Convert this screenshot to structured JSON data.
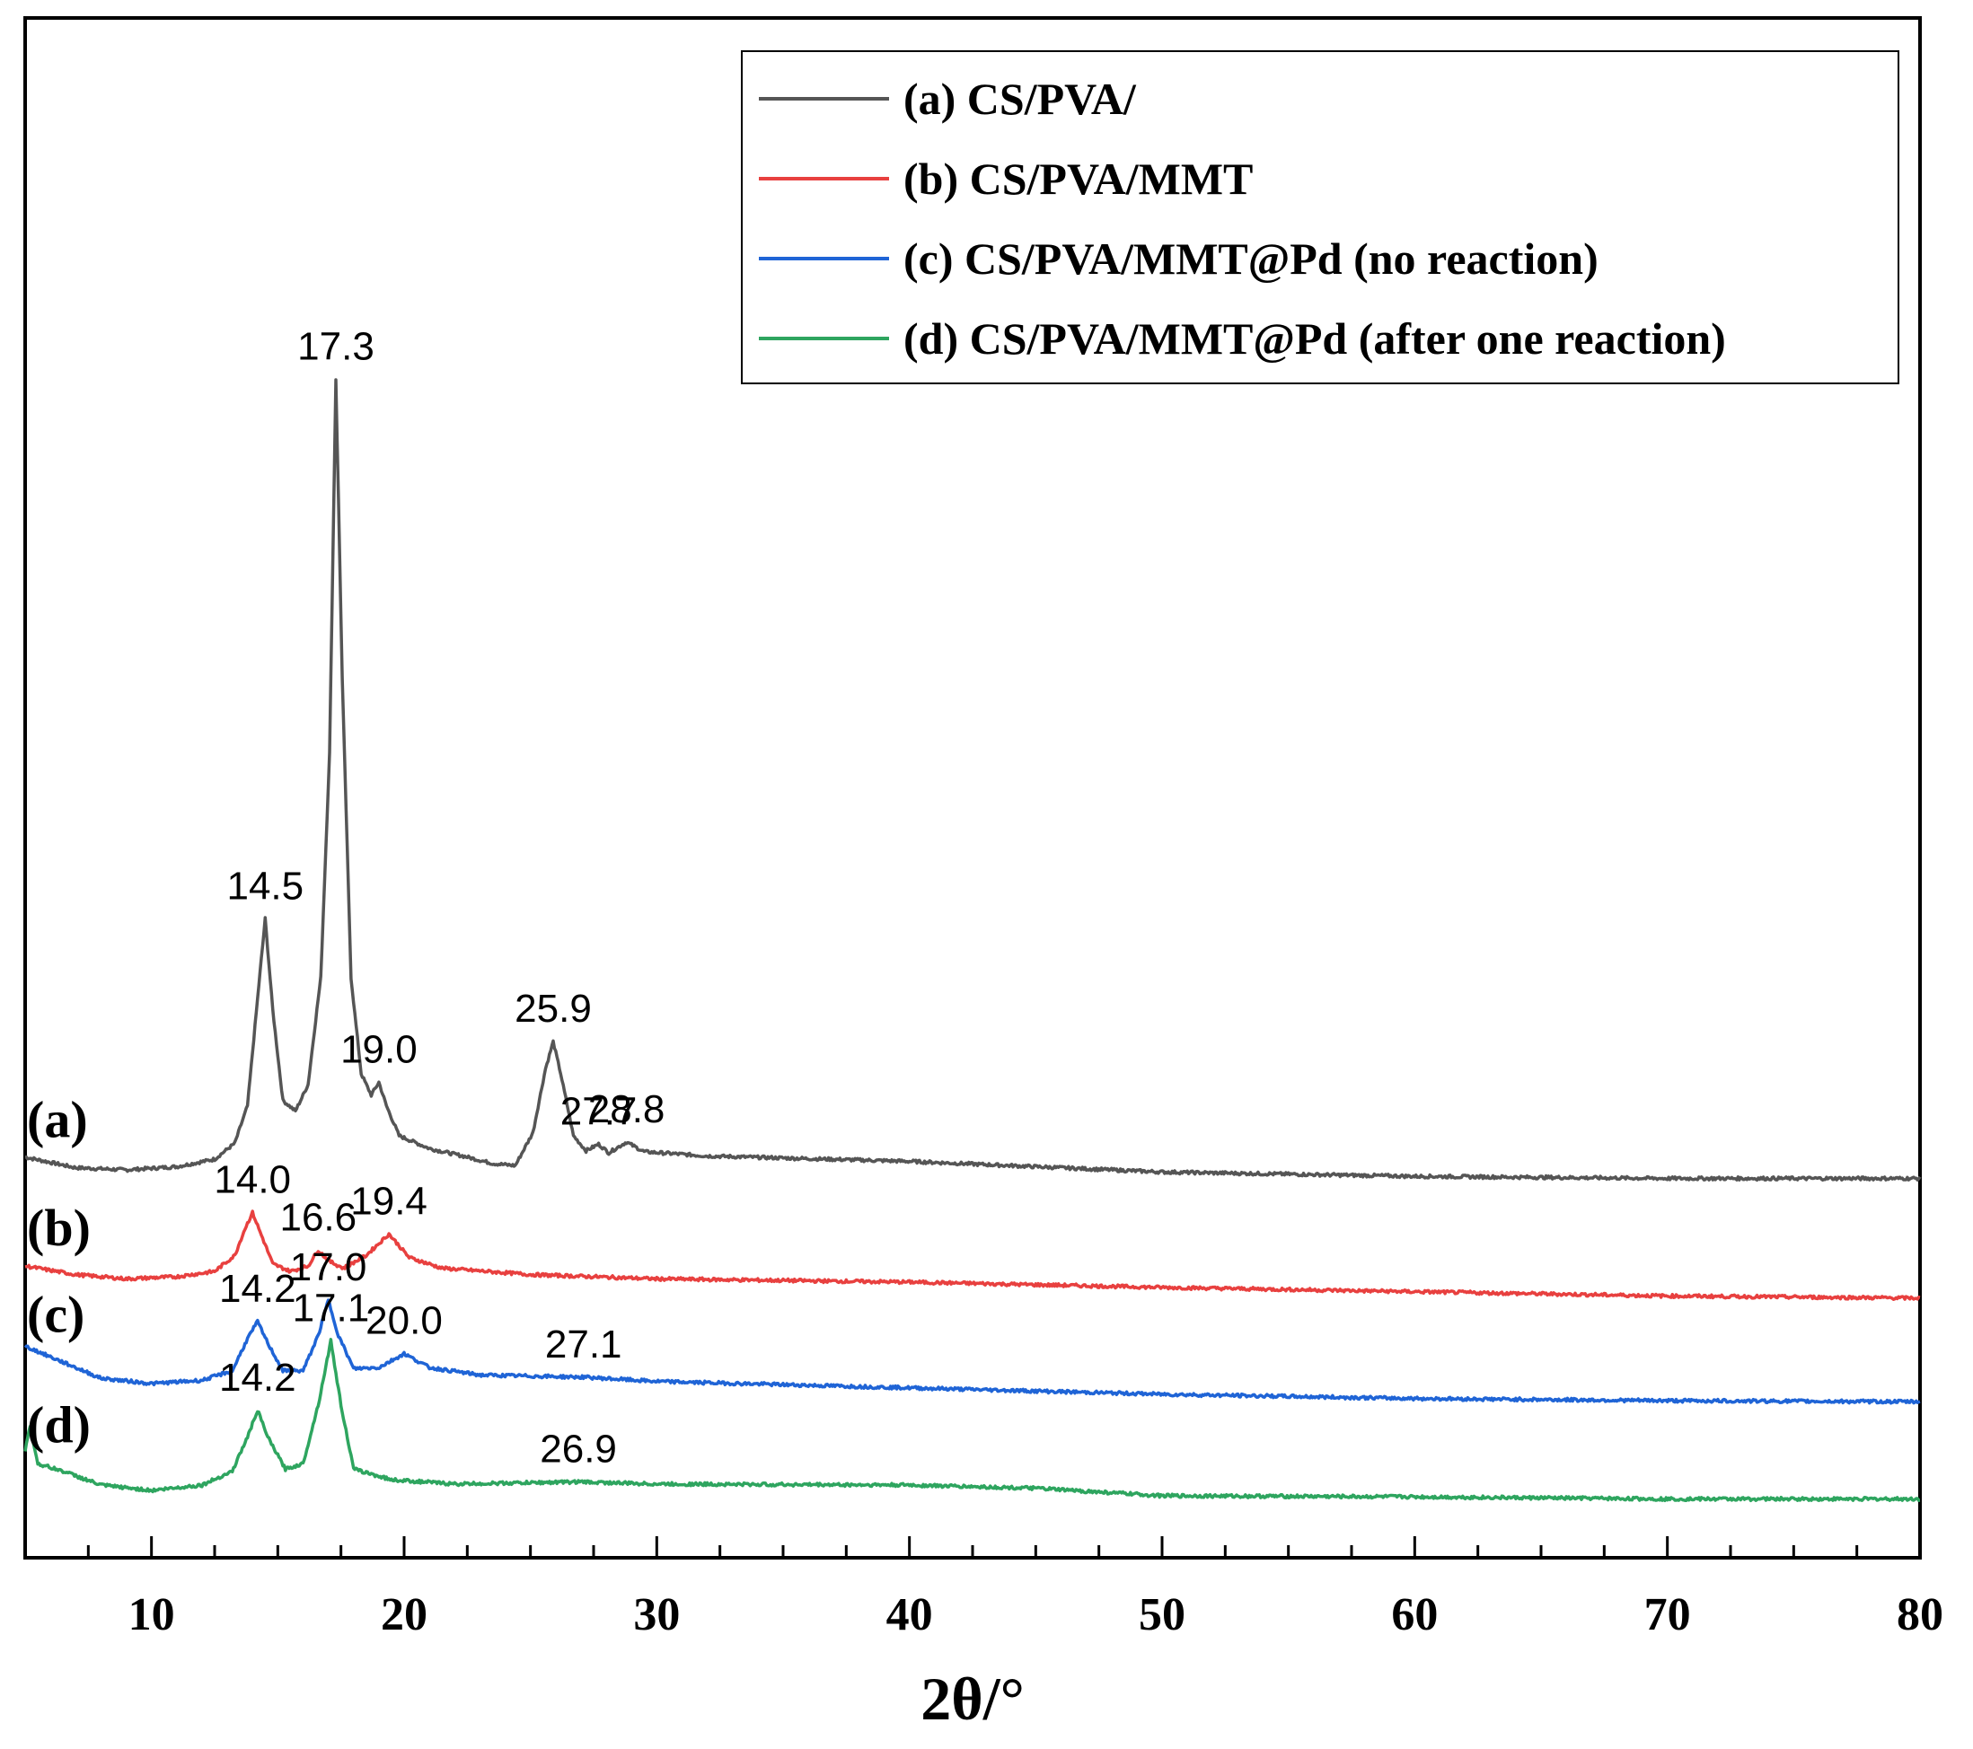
{
  "chart_data": {
    "type": "line",
    "title": "",
    "xlabel": "2θ/°",
    "ylabel": "",
    "xlim": [
      5,
      80
    ],
    "x_ticks": [
      10,
      20,
      30,
      40,
      50,
      60,
      70,
      80
    ],
    "grid": false,
    "legend_position": "top-right",
    "series": [
      {
        "id": "a",
        "tag": "(a)",
        "name": "(a) CS/PVA/",
        "color": "#555555",
        "baseline_offset": 3.0,
        "points": [
          [
            5,
            0.12
          ],
          [
            7,
            0.02
          ],
          [
            9,
            0.0
          ],
          [
            11,
            0.03
          ],
          [
            12.5,
            0.1
          ],
          [
            13.3,
            0.25
          ],
          [
            13.8,
            0.6
          ],
          [
            14.2,
            1.6
          ],
          [
            14.5,
            2.35
          ],
          [
            14.8,
            1.5
          ],
          [
            15.2,
            0.65
          ],
          [
            15.7,
            0.55
          ],
          [
            16.2,
            0.8
          ],
          [
            16.7,
            1.8
          ],
          [
            17.05,
            3.9
          ],
          [
            17.3,
            7.4
          ],
          [
            17.55,
            4.6
          ],
          [
            17.9,
            1.8
          ],
          [
            18.3,
            0.9
          ],
          [
            18.7,
            0.7
          ],
          [
            19.0,
            0.82
          ],
          [
            19.3,
            0.6
          ],
          [
            19.8,
            0.32
          ],
          [
            21,
            0.2
          ],
          [
            22.5,
            0.12
          ],
          [
            23.5,
            0.06
          ],
          [
            24.4,
            0.04
          ],
          [
            25.1,
            0.35
          ],
          [
            25.6,
            0.95
          ],
          [
            25.9,
            1.2
          ],
          [
            26.2,
            0.9
          ],
          [
            26.7,
            0.32
          ],
          [
            27.2,
            0.18
          ],
          [
            27.7,
            0.24
          ],
          [
            28.1,
            0.16
          ],
          [
            28.8,
            0.26
          ],
          [
            29.5,
            0.17
          ],
          [
            32,
            0.13
          ],
          [
            40,
            0.08
          ],
          [
            50,
            -0.02
          ],
          [
            60,
            -0.06
          ],
          [
            70,
            -0.08
          ],
          [
            80,
            -0.08
          ]
        ],
        "peaks": [
          [
            14.5,
            "14.5"
          ],
          [
            17.3,
            "17.3"
          ],
          [
            19.0,
            "19.0"
          ],
          [
            25.9,
            "25.9"
          ],
          [
            27.7,
            "27.7"
          ],
          [
            28.8,
            "28.8"
          ]
        ]
      },
      {
        "id": "b",
        "tag": "(b)",
        "name": "(b) CS/PVA/MMT",
        "color": "#e8403f",
        "baseline_offset": 2.0,
        "points": [
          [
            5,
            0.1
          ],
          [
            7,
            0.02
          ],
          [
            9,
            -0.02
          ],
          [
            11,
            0.0
          ],
          [
            12.5,
            0.05
          ],
          [
            13.3,
            0.2
          ],
          [
            13.7,
            0.45
          ],
          [
            14.0,
            0.6
          ],
          [
            14.3,
            0.42
          ],
          [
            14.8,
            0.12
          ],
          [
            15.5,
            0.05
          ],
          [
            16.2,
            0.1
          ],
          [
            16.6,
            0.25
          ],
          [
            17.0,
            0.15
          ],
          [
            17.6,
            0.08
          ],
          [
            18.5,
            0.2
          ],
          [
            19.4,
            0.4
          ],
          [
            20.2,
            0.18
          ],
          [
            21.5,
            0.08
          ],
          [
            25,
            0.02
          ],
          [
            30,
            -0.02
          ],
          [
            40,
            -0.05
          ],
          [
            50,
            -0.1
          ],
          [
            60,
            -0.14
          ],
          [
            70,
            -0.18
          ],
          [
            80,
            -0.2
          ]
        ],
        "peaks": [
          [
            14.0,
            "14.0"
          ],
          [
            16.6,
            "16.6"
          ],
          [
            19.4,
            "19.4"
          ]
        ]
      },
      {
        "id": "c",
        "tag": "(c)",
        "name": "(c) CS/PVA/MMT@Pd (no reaction)",
        "color": "#1f64d6",
        "baseline_offset": 1.0,
        "points": [
          [
            5,
            0.35
          ],
          [
            6.5,
            0.2
          ],
          [
            8,
            0.05
          ],
          [
            10,
            0.0
          ],
          [
            12,
            0.03
          ],
          [
            13.2,
            0.12
          ],
          [
            13.8,
            0.42
          ],
          [
            14.2,
            0.58
          ],
          [
            14.6,
            0.38
          ],
          [
            15.2,
            0.12
          ],
          [
            16.0,
            0.12
          ],
          [
            16.6,
            0.45
          ],
          [
            17.0,
            0.78
          ],
          [
            17.4,
            0.45
          ],
          [
            18.0,
            0.14
          ],
          [
            19.0,
            0.15
          ],
          [
            20.0,
            0.28
          ],
          [
            21.0,
            0.15
          ],
          [
            23,
            0.08
          ],
          [
            27.1,
            0.06
          ],
          [
            30,
            0.02
          ],
          [
            40,
            -0.04
          ],
          [
            50,
            -0.1
          ],
          [
            60,
            -0.14
          ],
          [
            70,
            -0.16
          ],
          [
            80,
            -0.17
          ]
        ],
        "peaks": [
          [
            14.2,
            "14.2"
          ],
          [
            17.0,
            "17.0"
          ],
          [
            20.0,
            "20.0"
          ],
          [
            27.1,
            "27.1"
          ]
        ]
      },
      {
        "id": "d",
        "tag": "(d)",
        "name": "(d) CS/PVA/MMT@Pd (after one reaction)",
        "color": "#2ea55f",
        "baseline_offset": 0.0,
        "points": [
          [
            5,
            0.38
          ],
          [
            5.2,
            0.6
          ],
          [
            5.5,
            0.25
          ],
          [
            6.5,
            0.18
          ],
          [
            8,
            0.05
          ],
          [
            10,
            0.0
          ],
          [
            12,
            0.05
          ],
          [
            13.2,
            0.18
          ],
          [
            13.8,
            0.5
          ],
          [
            14.2,
            0.75
          ],
          [
            14.6,
            0.5
          ],
          [
            15.3,
            0.2
          ],
          [
            16.0,
            0.25
          ],
          [
            16.6,
            0.8
          ],
          [
            17.1,
            1.4
          ],
          [
            17.5,
            0.8
          ],
          [
            18.0,
            0.2
          ],
          [
            19.5,
            0.1
          ],
          [
            22,
            0.06
          ],
          [
            26.9,
            0.08
          ],
          [
            30,
            0.06
          ],
          [
            40,
            0.05
          ],
          [
            45,
            0.02
          ],
          [
            50,
            -0.05
          ],
          [
            60,
            -0.06
          ],
          [
            70,
            -0.08
          ],
          [
            80,
            -0.08
          ]
        ],
        "peaks": [
          [
            14.2,
            "14.2"
          ],
          [
            17.1,
            "17.1"
          ],
          [
            26.9,
            "26.9"
          ]
        ]
      }
    ]
  }
}
